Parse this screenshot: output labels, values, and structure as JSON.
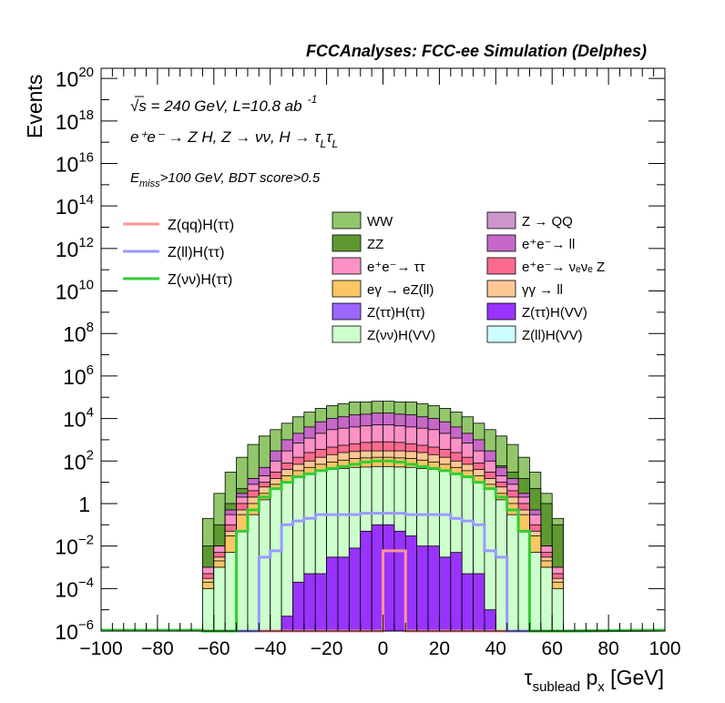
{
  "chart_data": {
    "type": "area",
    "title": "FCCAnalyses: FCC-ee Simulation (Delphes)",
    "xlabel": "τ_sublead p_x [GeV]",
    "ylabel": "Events",
    "xlim": [
      -100,
      100
    ],
    "ylim": [
      1e-06,
      3e+20
    ],
    "log_y": true,
    "x_ticks": [
      "−100",
      "−80",
      "−60",
      "−40",
      "−20",
      "0",
      "20",
      "40",
      "60",
      "80",
      "100"
    ],
    "y_ticks": [
      {
        "base": "10",
        "exp": "−6",
        "v": 1e-06
      },
      {
        "base": "10",
        "exp": "−4",
        "v": 0.0001
      },
      {
        "base": "10",
        "exp": "−2",
        "v": 0.01
      },
      {
        "base": "1",
        "exp": "",
        "v": 1
      },
      {
        "base": "10",
        "exp": "2",
        "v": 100.0
      },
      {
        "base": "10",
        "exp": "4",
        "v": 10000.0
      },
      {
        "base": "10",
        "exp": "6",
        "v": 1000000.0
      },
      {
        "base": "10",
        "exp": "8",
        "v": 100000000.0
      },
      {
        "base": "10",
        "exp": "10",
        "v": 10000000000.0
      },
      {
        "base": "10",
        "exp": "12",
        "v": 1000000000000.0
      },
      {
        "base": "10",
        "exp": "14",
        "v": 100000000000000.0
      },
      {
        "base": "10",
        "exp": "16",
        "v": 1e+16
      },
      {
        "base": "10",
        "exp": "18",
        "v": 1e+18
      },
      {
        "base": "10",
        "exp": "20",
        "v": 1e+20
      }
    ],
    "annotations": {
      "energy": "√s = 240 GeV, L=10.8 ab",
      "energy_exp": "-1",
      "process": "e⁺e⁻ → Z H, Z → νν, H → τ",
      "process_sub": "L",
      "process_tau2": "τ",
      "cuts_pre": "E",
      "cuts_sub": "miss",
      "cuts_post": ">100 GeV, BDT score>0.5"
    },
    "bin_edges": [
      -64,
      -60,
      -56,
      -52,
      -48,
      -44,
      -40,
      -36,
      -32,
      -28,
      -24,
      -20,
      -16,
      -12,
      -8,
      -4,
      0,
      4,
      8,
      12,
      16,
      20,
      24,
      28,
      32,
      36,
      40,
      44,
      48,
      52,
      56,
      60,
      64
    ],
    "stacked_cumulative": [
      {
        "name": "ZZ",
        "color": "#5e9930",
        "values": [
          0.01,
          0.1,
          1,
          5,
          15,
          30,
          60,
          100,
          200,
          300,
          400,
          500,
          550,
          600,
          600,
          600,
          600,
          600,
          600,
          600,
          550,
          500,
          400,
          300,
          200,
          100,
          60,
          30,
          15,
          5,
          1,
          0.1
        ]
      },
      {
        "name": "WW",
        "color": "#91c76a",
        "values": [
          0.2,
          3,
          30,
          150,
          600,
          1500,
          3000,
          6000,
          12000,
          20000,
          30000,
          40000,
          50000,
          60000,
          60000,
          65000,
          65000,
          60000,
          60000,
          50000,
          40000,
          30000,
          20000,
          12000,
          6000,
          3000,
          1500,
          600,
          150,
          30,
          3,
          0.2
        ]
      },
      {
        "name": "e⁺e⁻→ll",
        "color": "#c768c9",
        "values": [
          0.001,
          0.01,
          0.5,
          3,
          15,
          50,
          300,
          1000,
          2000,
          4000,
          7000,
          10000,
          12000,
          15000,
          16000,
          18000,
          18000,
          16000,
          15000,
          12000,
          10000,
          7000,
          4000,
          2000,
          1000,
          300,
          50,
          15,
          3,
          0.5,
          0.01,
          0.001
        ]
      },
      {
        "name": "e⁺e⁻→ττ",
        "color": "#fc91c6",
        "values": [
          0.001,
          0.01,
          0.3,
          2,
          8,
          20,
          100,
          300,
          700,
          1200,
          2000,
          3000,
          3500,
          4000,
          4500,
          5000,
          5000,
          4500,
          4000,
          3500,
          3000,
          2000,
          1200,
          700,
          300,
          100,
          20,
          8,
          2,
          0.3,
          0.01,
          0.001
        ]
      },
      {
        "name": "Z → QQ",
        "color": "#cc96cc",
        "values": [
          0,
          0,
          0,
          0,
          0,
          0,
          0,
          0,
          0,
          0,
          0,
          0,
          0,
          0,
          20,
          50,
          50,
          20,
          0,
          0,
          0,
          0,
          0,
          0,
          0,
          0,
          0,
          0,
          0,
          0,
          0,
          0
        ]
      },
      {
        "name": "e⁺e⁻→νₑνₑZ",
        "color": "#fa6b8f",
        "values": [
          0.0005,
          0.005,
          0.1,
          1,
          4,
          10,
          30,
          80,
          150,
          250,
          350,
          450,
          550,
          650,
          750,
          800,
          800,
          750,
          650,
          550,
          450,
          350,
          250,
          150,
          80,
          30,
          10,
          4,
          1,
          0.1,
          0.005,
          0.0005
        ]
      },
      {
        "name": "γγ → ll",
        "color": "#fcc896",
        "values": [
          0.0003,
          0.003,
          0.05,
          0.5,
          2,
          6,
          15,
          40,
          70,
          100,
          150,
          200,
          250,
          280,
          300,
          300,
          300,
          300,
          280,
          250,
          200,
          150,
          100,
          70,
          40,
          15,
          6,
          2,
          0.5,
          0.05,
          0.003,
          0.0003
        ]
      },
      {
        "name": "eγ → eZ(ll)",
        "color": "#fcc664",
        "values": [
          0.0002,
          0.002,
          0.03,
          0.3,
          1,
          3,
          8,
          20,
          35,
          50,
          70,
          90,
          110,
          130,
          140,
          150,
          150,
          140,
          130,
          110,
          90,
          70,
          50,
          35,
          20,
          8,
          3,
          1,
          0.3,
          0.03,
          0.002,
          0.0002
        ]
      },
      {
        "name": "Z(ll)H(VV)",
        "color": "#ccffff",
        "values": [
          0.0001,
          0.001,
          0.001,
          0.01,
          0.05,
          0.2,
          0.5,
          1,
          2,
          3,
          5,
          7,
          9,
          10,
          10,
          10,
          10,
          10,
          10,
          9,
          7,
          5,
          3,
          2,
          1,
          0.5,
          0.2,
          0.05,
          0.01,
          0.001,
          0.001,
          0.0001
        ]
      },
      {
        "name": "Z(νν)H(VV)",
        "color": "#ccffcc",
        "values": [
          0.0001,
          0.001,
          0.005,
          0.05,
          0.3,
          1.5,
          5,
          10,
          18,
          25,
          33,
          40,
          45,
          50,
          52,
          55,
          55,
          52,
          50,
          45,
          40,
          33,
          25,
          18,
          10,
          5,
          1.5,
          0.3,
          0.05,
          0.005,
          0.001,
          0.0001
        ]
      },
      {
        "name": "Z(ττ)H(VV)",
        "color": "#9933ff",
        "values": [
          0,
          0,
          0,
          0,
          0,
          0,
          0,
          5e-06,
          0.0002,
          0.0005,
          0.0005,
          0.003,
          0.003,
          0.008,
          0.05,
          0.1,
          0.1,
          0.05,
          0.03,
          0.01,
          0.01,
          0.003,
          0.005,
          0.0005,
          0.0005,
          1e-05,
          0,
          0,
          0,
          0,
          0,
          0
        ]
      },
      {
        "name": "Z(ττ)H(ττ)",
        "color": "#9c66ff",
        "values": [
          0,
          0,
          0,
          0,
          0,
          0,
          0,
          0,
          0,
          0,
          0,
          0,
          0,
          0,
          0,
          0,
          0,
          0,
          0,
          0,
          0,
          0,
          0,
          0,
          0,
          0,
          0,
          0,
          0,
          0,
          0,
          0
        ]
      }
    ],
    "stack_order_draw": [
      "WW",
      "ZZ",
      "e⁺e⁻→ll",
      "e⁺e⁻→ττ",
      "Z → QQ",
      "e⁺e⁻→νₑνₑZ",
      "γγ → ll",
      "eγ → eZ(ll)",
      "Z(ll)H(VV)",
      "Z(νν)H(VV)",
      "Z(ττ)H(VV)",
      "Z(ττ)H(ττ)"
    ],
    "signals": [
      {
        "name": "Z(qq)H(ττ)",
        "color": "#ff9696",
        "width": 3,
        "values": [
          1e-06,
          1e-06,
          1e-06,
          1e-06,
          1e-06,
          1e-06,
          1e-06,
          1e-06,
          1e-06,
          1e-06,
          1e-06,
          1e-06,
          1e-06,
          1e-06,
          1e-06,
          1e-06,
          0.006,
          0.006,
          1e-06,
          1e-06,
          1e-06,
          1e-06,
          1e-06,
          1e-06,
          1e-06,
          1e-06,
          1e-06,
          1e-06,
          1e-06,
          1e-06,
          1e-06,
          1e-06
        ]
      },
      {
        "name": "Z(ll)H(ττ)",
        "color": "#9999ff",
        "width": 3,
        "values": [
          1e-06,
          1e-06,
          1e-06,
          1e-06,
          1e-06,
          0.003,
          0.006,
          0.1,
          0.15,
          0.2,
          0.3,
          0.3,
          0.3,
          0.3,
          0.35,
          0.35,
          0.35,
          0.35,
          0.3,
          0.3,
          0.3,
          0.3,
          0.2,
          0.15,
          0.1,
          0.006,
          0.003,
          1e-06,
          1e-06,
          1e-06,
          1e-06,
          1e-06
        ]
      },
      {
        "name": "Z(νν)H(ττ)",
        "color": "#33cc33",
        "width": 3,
        "values": [
          1e-06,
          1e-06,
          1e-06,
          0.05,
          0.5,
          2,
          5,
          10,
          18,
          25,
          35,
          45,
          55,
          70,
          90,
          100,
          100,
          90,
          70,
          55,
          45,
          35,
          25,
          18,
          10,
          5,
          2,
          0.5,
          0.05,
          1e-06,
          1e-06,
          1e-06
        ]
      }
    ],
    "legend_signals": [
      "Z(qq)H(ττ)",
      "Z(ll)H(ττ)",
      "Z(νν)H(ττ)"
    ],
    "legend_backgrounds": [
      {
        "name": "WW",
        "color": "#91c76a"
      },
      {
        "name": "Z → QQ",
        "color": "#cc96cc"
      },
      {
        "name": "ZZ",
        "color": "#5e9930"
      },
      {
        "name": "e⁺e⁻→ ll",
        "color": "#c768c9"
      },
      {
        "name": "e⁺e⁻→ ττ",
        "color": "#fc91c6"
      },
      {
        "name": "e⁺e⁻→ νₑνₑ Z",
        "color": "#fa6b8f"
      },
      {
        "name": "eγ → eZ(ll)",
        "color": "#fcc664"
      },
      {
        "name": "γγ → ll",
        "color": "#fcc896"
      },
      {
        "name": "Z(ττ)H(ττ)",
        "color": "#9c66ff"
      },
      {
        "name": "Z(ττ)H(VV)",
        "color": "#9933ff"
      },
      {
        "name": "Z(νν)H(VV)",
        "color": "#ccffcc"
      },
      {
        "name": "Z(ll)H(VV)",
        "color": "#ccffff"
      }
    ]
  }
}
